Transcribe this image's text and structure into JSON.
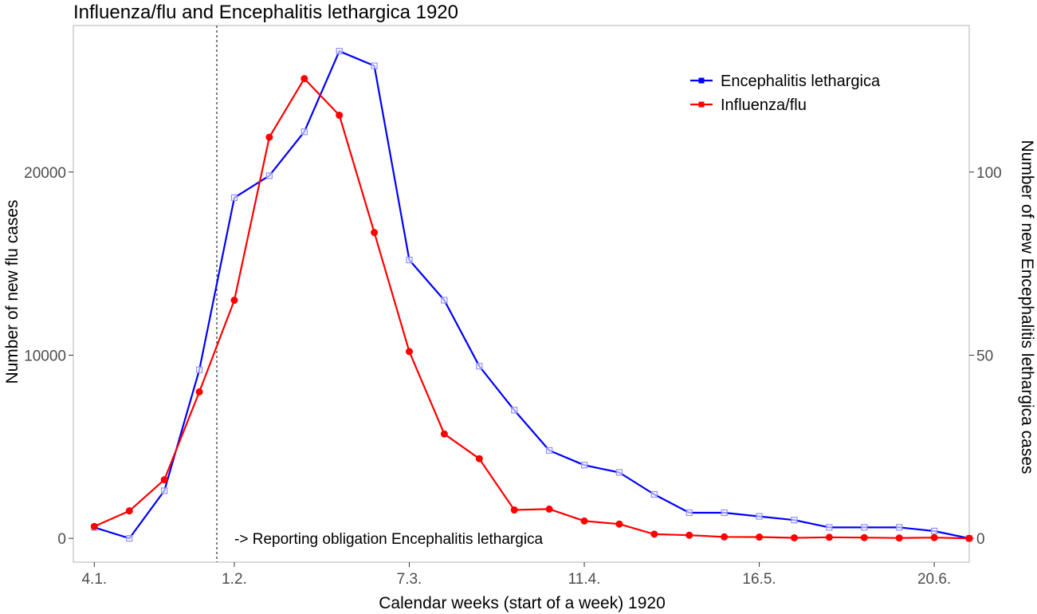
{
  "chart_data": {
    "type": "line",
    "title": "Influenza/flu and Encephalitis lethargica 1920",
    "xlabel": "Calendar weeks (start of a week) 1920",
    "ylabel_left": "Number of new flu cases",
    "ylabel_right": "Number of new Encephalitis lethargica cases",
    "x_tick_labels": [
      "4.1.",
      "1.2.",
      "7.3.",
      "11.4.",
      "16.5.",
      "20.6."
    ],
    "x_tick_weeks": [
      1,
      5,
      10,
      15,
      20,
      25
    ],
    "xlim": [
      0.4,
      26.0
    ],
    "ylim_left": [
      -1300,
      28000
    ],
    "y_ticks_left": [
      0,
      10000,
      20000
    ],
    "ylim_right": [
      -6.5,
      140
    ],
    "y_ticks_right": [
      0,
      50,
      100
    ],
    "grid": false,
    "legend_position": "top-right",
    "vline": {
      "x": 4.5,
      "style": "dotted"
    },
    "annotation": "-> Reporting obligation Encephalitis lethargica",
    "series": [
      {
        "name": "Encephalitis lethargica",
        "axis": "right",
        "color": "#0000ff",
        "marker": "open-square",
        "x": [
          1,
          2,
          3,
          4,
          5,
          6,
          7,
          8,
          9,
          10,
          11,
          12,
          13,
          14,
          15,
          16,
          17,
          18,
          19,
          20,
          21,
          22,
          23,
          24,
          25,
          26
        ],
        "values": [
          3,
          0,
          13,
          46,
          93,
          99,
          111,
          133,
          129,
          76,
          65,
          47,
          35,
          24,
          20,
          18,
          12,
          7,
          7,
          6,
          5,
          3,
          3,
          3,
          2,
          0
        ]
      },
      {
        "name": "Influenza/flu",
        "axis": "left",
        "color": "#ff0000",
        "marker": "filled-circle",
        "x": [
          1,
          2,
          3,
          4,
          5,
          6,
          7,
          8,
          9,
          10,
          11,
          12,
          13,
          14,
          15,
          16,
          17,
          18,
          19,
          20,
          21,
          22,
          23,
          24,
          25,
          26
        ],
        "values": [
          650,
          1500,
          3200,
          8000,
          13000,
          21900,
          25100,
          23100,
          16700,
          10200,
          5700,
          4350,
          1550,
          1600,
          950,
          780,
          230,
          170,
          80,
          70,
          30,
          60,
          40,
          20,
          40,
          0
        ]
      }
    ]
  },
  "colors": {
    "panel_border": "#b3b3b3",
    "tick_text": "#4d4d4d",
    "vline": "#555555"
  }
}
